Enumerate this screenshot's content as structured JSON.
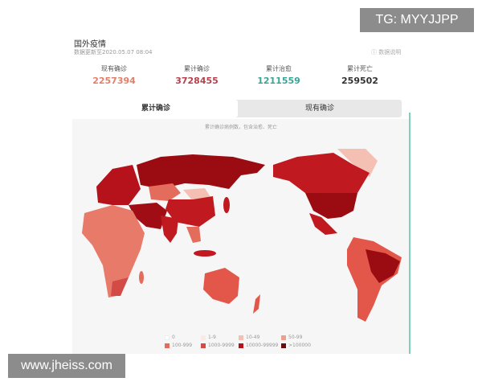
{
  "watermarks": {
    "top": "TG: MYYJJPP",
    "bottom": "www.jheiss.com"
  },
  "header": {
    "title": "国外疫情",
    "updated": "数据更新至2020.05.07 08:04",
    "explain": "ⓘ 数据说明"
  },
  "stats": [
    {
      "label": "现有确诊",
      "value": "2257394",
      "color": "#e0806a"
    },
    {
      "label": "累计确诊",
      "value": "3728455",
      "color": "#b8414c"
    },
    {
      "label": "累计治愈",
      "value": "1211559",
      "color": "#3aa597"
    },
    {
      "label": "累计死亡",
      "value": "259502",
      "color": "#333333"
    }
  ],
  "tabs": [
    {
      "label": "累计确诊",
      "active": true
    },
    {
      "label": "现有确诊",
      "active": false
    }
  ],
  "map": {
    "caption": "累计确诊病例数，包含治愈、死亡"
  },
  "legend": [
    {
      "label": "0",
      "color": "#ffffff"
    },
    {
      "label": "1-9",
      "color": "#fde9e4"
    },
    {
      "label": "10-49",
      "color": "#f5c0b4"
    },
    {
      "label": "50-99",
      "color": "#eea08d"
    },
    {
      "label": "100-999",
      "color": "#e36c5d"
    },
    {
      "label": "1000-9999",
      "color": "#d24b47"
    },
    {
      "label": "10000-99999",
      "color": "#b5121b"
    },
    {
      "label": ">100000",
      "color": "#6b0a0f"
    }
  ]
}
